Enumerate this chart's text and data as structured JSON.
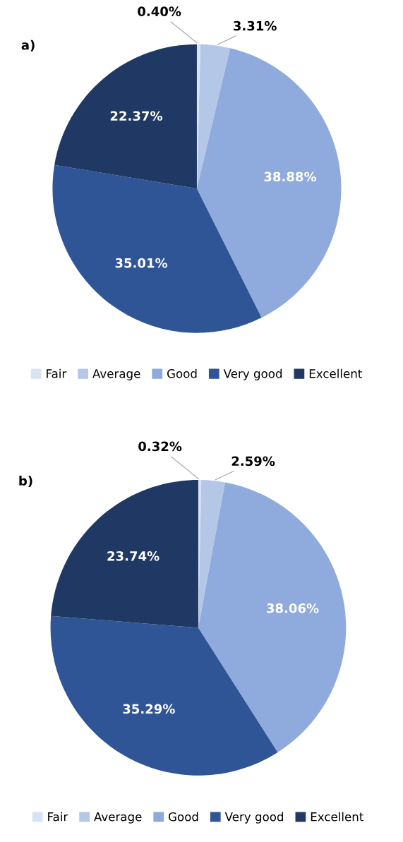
{
  "chart_data": [
    {
      "type": "pie",
      "title": "a)",
      "categories": [
        "Fair",
        "Average",
        "Good",
        "Very good",
        "Excellent"
      ],
      "values": [
        0.4,
        3.31,
        38.88,
        35.01,
        22.37
      ],
      "colors": [
        "#dae3f3",
        "#b4c7e7",
        "#8faadc",
        "#2f5597",
        "#203864"
      ],
      "value_labels": [
        "0.40%",
        "3.31%",
        "38.88%",
        "35.01%",
        "22.37%"
      ],
      "legend": "bottom"
    },
    {
      "type": "pie",
      "title": "b)",
      "categories": [
        "Fair",
        "Average",
        "Good",
        "Very good",
        "Excellent"
      ],
      "values": [
        0.32,
        2.59,
        38.06,
        35.29,
        23.74
      ],
      "colors": [
        "#dae3f3",
        "#b4c7e7",
        "#8faadc",
        "#2f5597",
        "#203864"
      ],
      "value_labels": [
        "0.32%",
        "2.59%",
        "38.06%",
        "35.29%",
        "23.74%"
      ],
      "legend": "bottom"
    }
  ]
}
